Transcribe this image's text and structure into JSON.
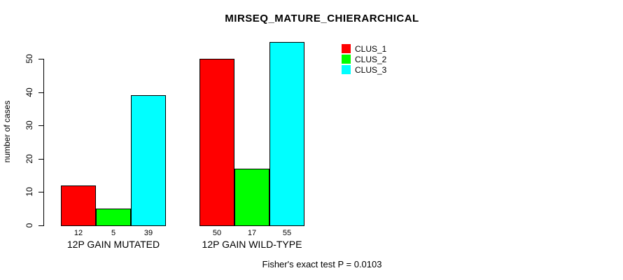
{
  "chart_data": {
    "type": "bar",
    "title": "MIRSEQ_MATURE_CHIERARCHICAL",
    "xlabel": "",
    "ylabel": "number of cases",
    "ylim": [
      0,
      55
    ],
    "yticks": [
      0,
      10,
      20,
      30,
      40,
      50
    ],
    "grid": false,
    "legend_position": "top-right",
    "categories": [
      "12P GAIN MUTATED",
      "12P GAIN WILD-TYPE"
    ],
    "series": [
      {
        "name": "CLUS_1",
        "color": "#FF0000",
        "values": [
          12,
          50
        ]
      },
      {
        "name": "CLUS_2",
        "color": "#00FF00",
        "values": [
          5,
          17
        ]
      },
      {
        "name": "CLUS_3",
        "color": "#00FFFF",
        "values": [
          39,
          55
        ]
      }
    ],
    "bar_value_labels_shown": true,
    "footnote": "Fisher's exact test P = 0.0103"
  },
  "style": {
    "bar_border_color": "#000000",
    "axis_color": "#000000",
    "background_color": "#FFFFFF"
  }
}
